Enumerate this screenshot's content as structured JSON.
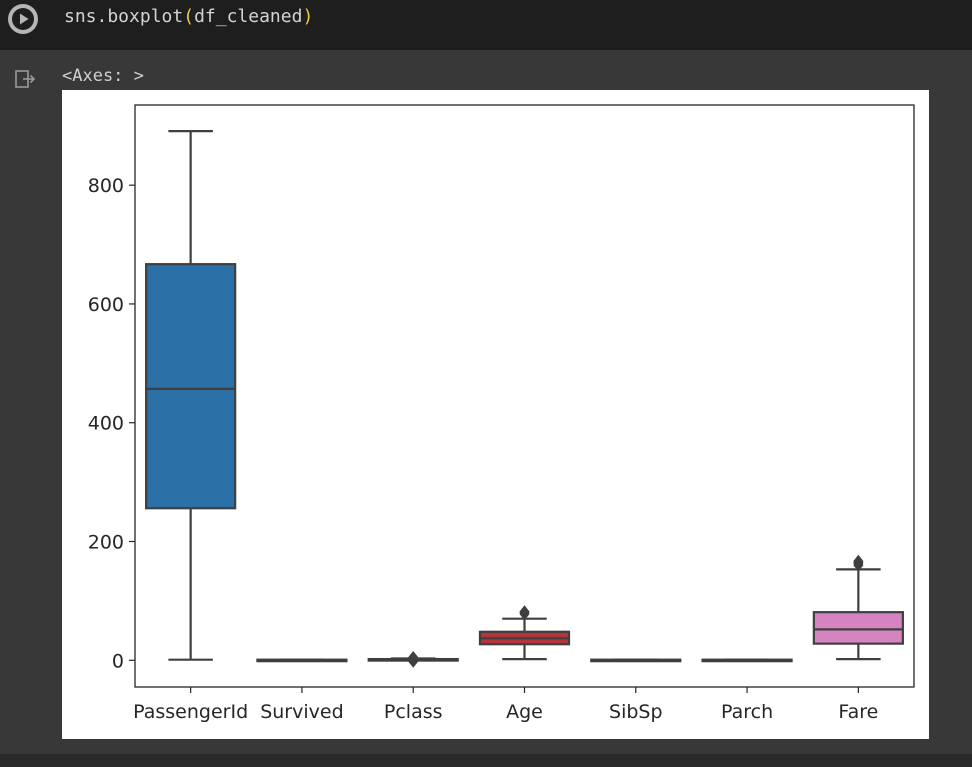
{
  "code_cell": {
    "code_prefix": "sns.boxplot",
    "code_open": "(",
    "code_arg": "df_cleaned",
    "code_close": ")",
    "run_icon": "play-icon"
  },
  "output": {
    "text": "<Axes: >",
    "icon": "output-redirect-icon"
  },
  "colors": {
    "PassengerId": "#2b70a7",
    "Survived": "#d2731f",
    "Pclass": "#2f8a3a",
    "Age": "#b3343a",
    "SibSp": "#7f5fa6",
    "Parch": "#875a50",
    "Fare": "#d584c1",
    "line": "#3f3f3f"
  },
  "chart_data": {
    "type": "box",
    "categories": [
      "PassengerId",
      "Survived",
      "Pclass",
      "Age",
      "SibSp",
      "Parch",
      "Fare"
    ],
    "yticks": [
      0,
      200,
      400,
      600,
      800
    ],
    "ylim": [
      -45,
      935
    ],
    "boxes": [
      {
        "name": "PassengerId",
        "whisker_low": 1,
        "q1": 256,
        "median": 457,
        "q3": 667,
        "whisker_high": 891,
        "outliers": []
      },
      {
        "name": "Survived",
        "whisker_low": 0,
        "q1": 0,
        "median": 0,
        "q3": 1,
        "whisker_high": 1,
        "outliers": []
      },
      {
        "name": "Pclass",
        "whisker_low": 1,
        "q1": 1,
        "median": 1,
        "q3": 2,
        "whisker_high": 3,
        "outliers": [
          -2,
          1,
          3,
          5
        ]
      },
      {
        "name": "Age",
        "whisker_low": 2,
        "q1": 27,
        "median": 37,
        "q3": 48,
        "whisker_high": 70,
        "outliers": [
          78,
          80,
          82
        ]
      },
      {
        "name": "SibSp",
        "whisker_low": 0,
        "q1": 0,
        "median": 0,
        "q3": 1,
        "whisker_high": 1,
        "outliers": []
      },
      {
        "name": "Parch",
        "whisker_low": 0,
        "q1": 0,
        "median": 0,
        "q3": 1,
        "whisker_high": 1,
        "outliers": []
      },
      {
        "name": "Fare",
        "whisker_low": 2,
        "q1": 28,
        "median": 52,
        "q3": 81,
        "whisker_high": 153,
        "outliers": [
          160,
          163,
          165,
          167
        ]
      }
    ]
  }
}
